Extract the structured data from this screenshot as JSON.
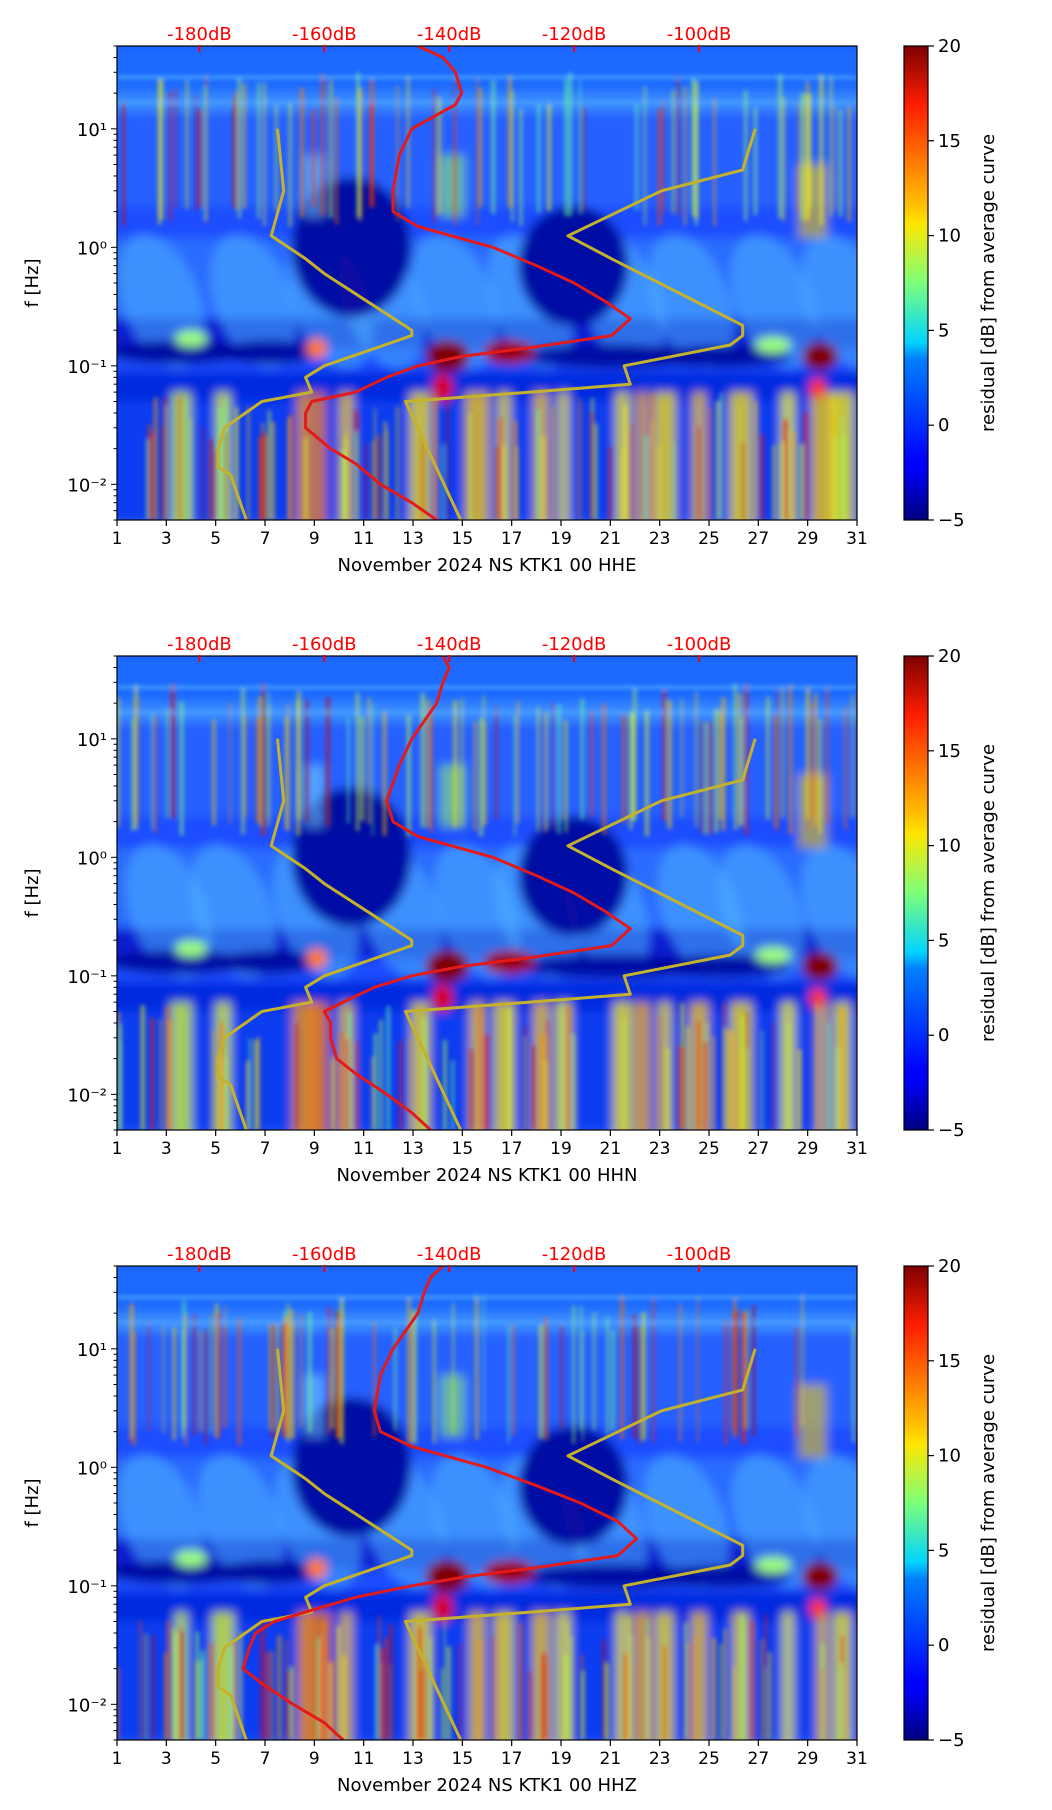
{
  "colors": {
    "db_axis": "#ff0000",
    "mean_curve": "#e31a1c",
    "model_curves": "#c4b22c",
    "axis": "#000000"
  },
  "colorbar": {
    "label": "residual [dB] from average curve",
    "ticks": [
      "20",
      "15",
      "10",
      "5",
      "0",
      "−5"
    ],
    "range": [
      -5,
      20
    ],
    "colormap": "jet"
  },
  "chart_data": [
    {
      "type": "heatmap",
      "title": "",
      "xlabel": "November 2024 NS KTK1 00 HHE",
      "ylabel": "f [Hz]",
      "xlim": [
        1,
        31
      ],
      "ylim": [
        0.005,
        50
      ],
      "yscale": "log",
      "x_ticks": [
        "1",
        "3",
        "5",
        "7",
        "9",
        "11",
        "13",
        "15",
        "17",
        "19",
        "21",
        "23",
        "25",
        "27",
        "29",
        "31"
      ],
      "y_ticks": [
        "10¹",
        "10⁰",
        "10⁻¹",
        "10⁻²"
      ],
      "db_ticks": [
        "-180dB",
        "-160dB",
        "-140dB",
        "-120dB",
        "-100dB"
      ],
      "mean_psd_curve": {
        "f_hz": [
          50,
          40,
          30,
          20,
          16,
          10,
          6,
          3,
          2,
          1.5,
          1,
          0.7,
          0.5,
          0.35,
          0.25,
          0.18,
          0.14,
          0.12,
          0.1,
          0.08,
          0.06,
          0.05,
          0.04,
          0.03,
          0.02,
          0.015,
          0.01,
          0.007,
          0.005
        ],
        "db": [
          -145,
          -141,
          -139,
          -138,
          -139,
          -146,
          -148,
          -149,
          -149,
          -145,
          -133,
          -126,
          -120,
          -115,
          -111,
          -114,
          -128,
          -138,
          -145,
          -150,
          -155,
          -162,
          -163,
          -163,
          -159,
          -155,
          -151,
          -146,
          -142
        ]
      },
      "low_noise_model": {
        "f_hz": [
          10,
          3,
          1.25,
          0.8,
          0.6,
          0.2,
          0.18,
          0.1,
          0.08,
          0.06,
          0.05,
          0.03,
          0.02,
          0.014,
          0.012,
          0.005
        ],
        "db": [
          -167.5,
          -166.5,
          -168.5,
          -163,
          -160,
          -146,
          -146,
          -160,
          -163,
          -162,
          -170,
          -176,
          -177,
          -177,
          -175,
          -172.5
        ]
      },
      "high_noise_model": {
        "f_hz": [
          10,
          4.5,
          3,
          1.25,
          0.8,
          0.22,
          0.18,
          0.15,
          0.1,
          0.07,
          0.06,
          0.05,
          0.0048
        ],
        "db": [
          -91,
          -93,
          -106,
          -121,
          -114,
          -93,
          -93,
          -95,
          -112,
          -111,
          -127,
          -147,
          -138
        ]
      }
    },
    {
      "type": "heatmap",
      "title": "",
      "xlabel": "November 2024 NS KTK1 00 HHN",
      "ylabel": "f [Hz]",
      "xlim": [
        1,
        31
      ],
      "ylim": [
        0.005,
        50
      ],
      "yscale": "log",
      "x_ticks": [
        "1",
        "3",
        "5",
        "7",
        "9",
        "11",
        "13",
        "15",
        "17",
        "19",
        "21",
        "23",
        "25",
        "27",
        "29",
        "31"
      ],
      "y_ticks": [
        "10¹",
        "10⁰",
        "10⁻¹",
        "10⁻²"
      ],
      "db_ticks": [
        "-180dB",
        "-160dB",
        "-140dB",
        "-120dB",
        "-100dB"
      ],
      "mean_psd_curve": {
        "f_hz": [
          50,
          40,
          30,
          20,
          10,
          6,
          3,
          2,
          1.5,
          1,
          0.7,
          0.5,
          0.35,
          0.25,
          0.18,
          0.14,
          0.12,
          0.1,
          0.08,
          0.06,
          0.05,
          0.04,
          0.03,
          0.02,
          0.015,
          0.01,
          0.007,
          0.005
        ],
        "db": [
          -141,
          -140,
          -141,
          -142,
          -146,
          -148,
          -150,
          -149,
          -145,
          -133,
          -126,
          -120,
          -115,
          -111,
          -114,
          -128,
          -138,
          -146,
          -152,
          -157,
          -160,
          -159,
          -159,
          -158,
          -155,
          -150,
          -146,
          -143
        ]
      },
      "low_noise_model": {
        "f_hz": [
          10,
          3,
          1.25,
          0.8,
          0.6,
          0.2,
          0.18,
          0.1,
          0.08,
          0.06,
          0.05,
          0.03,
          0.02,
          0.014,
          0.012,
          0.005
        ],
        "db": [
          -167.5,
          -166.5,
          -168.5,
          -163,
          -160,
          -146,
          -146,
          -160,
          -163,
          -162,
          -170,
          -176,
          -177,
          -177,
          -175,
          -172.5
        ]
      },
      "high_noise_model": {
        "f_hz": [
          10,
          4.5,
          3,
          1.25,
          0.8,
          0.22,
          0.18,
          0.15,
          0.1,
          0.07,
          0.06,
          0.05,
          0.0048
        ],
        "db": [
          -91,
          -93,
          -106,
          -121,
          -114,
          -93,
          -93,
          -95,
          -112,
          -111,
          -127,
          -147,
          -138
        ]
      }
    },
    {
      "type": "heatmap",
      "title": "",
      "xlabel": "November 2024 NS KTK1 00 HHZ",
      "ylabel": "f [Hz]",
      "xlim": [
        1,
        31
      ],
      "ylim": [
        0.005,
        50
      ],
      "yscale": "log",
      "x_ticks": [
        "1",
        "3",
        "5",
        "7",
        "9",
        "11",
        "13",
        "15",
        "17",
        "19",
        "21",
        "23",
        "25",
        "27",
        "29",
        "31"
      ],
      "y_ticks": [
        "10¹",
        "10⁰",
        "10⁻¹",
        "10⁻²"
      ],
      "db_ticks": [
        "-180dB",
        "-160dB",
        "-140dB",
        "-120dB",
        "-100dB"
      ],
      "mean_psd_curve": {
        "f_hz": [
          50,
          40,
          30,
          20,
          10,
          6,
          3,
          2,
          1.5,
          1,
          0.7,
          0.5,
          0.35,
          0.25,
          0.18,
          0.14,
          0.12,
          0.1,
          0.08,
          0.06,
          0.05,
          0.04,
          0.03,
          0.02,
          0.015,
          0.01,
          0.007,
          0.005
        ],
        "db": [
          -141,
          -143,
          -144,
          -145,
          -149,
          -151,
          -152,
          -151,
          -146,
          -134,
          -126,
          -119,
          -113,
          -110,
          -113,
          -127,
          -137,
          -146,
          -155,
          -163,
          -168,
          -171,
          -172,
          -173,
          -170,
          -165,
          -160,
          -157
        ]
      },
      "low_noise_model": {
        "f_hz": [
          10,
          3,
          1.25,
          0.8,
          0.6,
          0.2,
          0.18,
          0.1,
          0.08,
          0.06,
          0.05,
          0.03,
          0.02,
          0.014,
          0.012,
          0.005
        ],
        "db": [
          -167.5,
          -166.5,
          -168.5,
          -163,
          -160,
          -146,
          -146,
          -160,
          -163,
          -162,
          -170,
          -176,
          -177,
          -177,
          -175,
          -172.5
        ]
      },
      "high_noise_model": {
        "f_hz": [
          10,
          4.5,
          3,
          1.25,
          0.8,
          0.22,
          0.18,
          0.15,
          0.1,
          0.07,
          0.06,
          0.05,
          0.0048
        ],
        "db": [
          -91,
          -93,
          -106,
          -121,
          -114,
          -93,
          -93,
          -95,
          -112,
          -111,
          -127,
          -147,
          -138
        ]
      }
    }
  ]
}
